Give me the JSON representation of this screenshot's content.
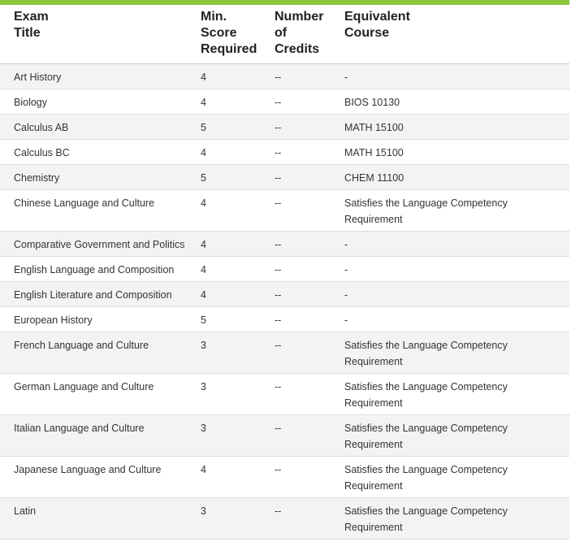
{
  "table": {
    "header": [
      "Exam Title",
      "Min. Score Required",
      "Number of Credits",
      "Equivalent Course"
    ],
    "rows": [
      [
        "Art History",
        "4",
        "--",
        "-"
      ],
      [
        "Biology",
        "4",
        "--",
        "BIOS 10130"
      ],
      [
        "Calculus AB",
        "5",
        "--",
        "MATH 15100"
      ],
      [
        "Calculus BC",
        "4",
        "--",
        "MATH 15100"
      ],
      [
        "Chemistry",
        "5",
        "--",
        "CHEM 11100"
      ],
      [
        "Chinese Language and Culture",
        "4",
        "--",
        "Satisfies the Language Competency Requirement"
      ],
      [
        "Comparative Government and Politics",
        "4",
        "--",
        "-"
      ],
      [
        "English Language and Composition",
        "4",
        "--",
        "-"
      ],
      [
        "English Literature and Composition",
        "4",
        "--",
        "-"
      ],
      [
        "European History",
        "5",
        "--",
        "-"
      ],
      [
        "French Language and Culture",
        "3",
        "--",
        "Satisfies the Language Competency Requirement"
      ],
      [
        "German Language and Culture",
        "3",
        "--",
        "Satisfies the Language Competency Requirement"
      ],
      [
        "Italian Language and Culture",
        "3",
        "--",
        "Satisfies the Language Competency Requirement"
      ],
      [
        "Japanese Language and Culture",
        "4",
        "--",
        "Satisfies the Language Competency Requirement"
      ],
      [
        "Latin",
        "3",
        "--",
        "Satisfies the Language Competency Requirement"
      ]
    ]
  }
}
